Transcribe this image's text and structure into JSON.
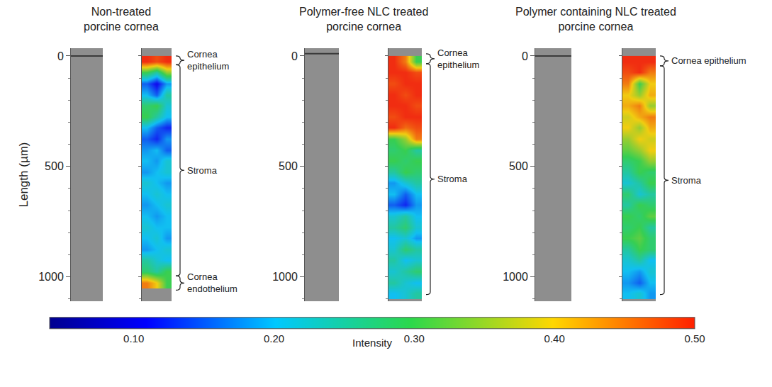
{
  "chart_data": {
    "type": "heatmap",
    "ylabel": "Length (µm)",
    "ylim": [
      1110,
      -35
    ],
    "yticks": [
      0,
      500,
      1000
    ],
    "yminor": [
      100,
      200,
      300,
      400,
      600,
      700,
      800,
      900,
      1100
    ],
    "y": [
      25,
      75,
      125,
      175,
      225,
      275,
      325,
      375,
      425,
      475,
      525,
      575,
      625,
      675,
      725,
      775,
      825,
      875,
      925,
      975,
      1025,
      1075
    ],
    "colorbar": {
      "title": "Intensity",
      "range": [
        0.04,
        0.5
      ],
      "ticks": [
        {
          "value": 0.1,
          "label": "0.10"
        },
        {
          "value": 0.2,
          "label": "0.20"
        },
        {
          "value": 0.3,
          "label": "0.30"
        },
        {
          "value": 0.4,
          "label": "0.40"
        },
        {
          "value": 0.5,
          "label": "0.50"
        }
      ]
    },
    "panels": [
      {
        "title": "Non-treated porcine cornea",
        "regions": [
          {
            "label": "Cornea epithelium",
            "start": 0,
            "end": 40
          },
          {
            "label": "Stroma",
            "start": 40,
            "end": 995
          },
          {
            "label": "Cornea endothelium",
            "start": 995,
            "end": 1060
          }
        ],
        "z": [
          [
            0.5,
            0.48,
            0.5
          ],
          [
            0.3,
            0.25,
            0.35
          ],
          [
            0.15,
            0.1,
            0.18
          ],
          [
            0.2,
            0.15,
            0.25
          ],
          [
            0.28,
            0.3,
            0.22
          ],
          [
            0.3,
            0.25,
            0.2
          ],
          [
            0.2,
            0.15,
            0.12
          ],
          [
            0.15,
            0.12,
            0.18
          ],
          [
            0.18,
            0.2,
            0.15
          ],
          [
            0.2,
            0.18,
            0.22
          ],
          [
            0.18,
            0.2,
            0.22
          ],
          [
            0.22,
            0.2,
            0.18
          ],
          [
            0.2,
            0.22,
            0.2
          ],
          [
            0.18,
            0.2,
            0.22
          ],
          [
            0.2,
            0.18,
            0.2
          ],
          [
            0.22,
            0.2,
            0.2
          ],
          [
            0.2,
            0.22,
            0.18
          ],
          [
            0.18,
            0.2,
            0.22
          ],
          [
            0.25,
            0.22,
            0.2
          ],
          [
            0.28,
            0.25,
            0.3
          ],
          [
            0.45,
            0.4,
            0.3
          ],
          [
            null,
            null,
            null
          ]
        ]
      },
      {
        "title": "Polymer-free NLC treated porcine cornea",
        "regions": [
          {
            "label": "Cornea epithelium",
            "start": -10,
            "end": 35
          },
          {
            "label": "Stroma",
            "start": 35,
            "end": 1080
          }
        ],
        "z": [
          [
            0.5,
            0.45,
            0.3
          ],
          [
            0.5,
            0.5,
            0.48
          ],
          [
            0.48,
            0.5,
            0.5
          ],
          [
            0.5,
            0.48,
            0.5
          ],
          [
            0.5,
            0.5,
            0.48
          ],
          [
            0.48,
            0.5,
            0.5
          ],
          [
            0.5,
            0.46,
            0.48
          ],
          [
            0.3,
            0.35,
            0.45
          ],
          [
            0.28,
            0.3,
            0.25
          ],
          [
            0.3,
            0.28,
            0.3
          ],
          [
            0.25,
            0.3,
            0.28
          ],
          [
            0.18,
            0.22,
            0.25
          ],
          [
            0.2,
            0.15,
            0.2
          ],
          [
            0.15,
            0.12,
            0.18
          ],
          [
            0.22,
            0.25,
            0.2
          ],
          [
            0.25,
            0.28,
            0.22
          ],
          [
            0.2,
            0.22,
            0.18
          ],
          [
            0.22,
            0.28,
            0.25
          ],
          [
            0.25,
            0.2,
            0.22
          ],
          [
            0.22,
            0.25,
            0.28
          ],
          [
            0.25,
            0.22,
            0.2
          ],
          [
            0.2,
            0.22,
            0.25
          ]
        ]
      },
      {
        "title": "Polymer containing NLC treated porcine cornea",
        "regions": [
          {
            "label": "Cornea epithelium",
            "start": 0,
            "end": 45
          },
          {
            "label": "Stroma",
            "start": 45,
            "end": 1080
          }
        ],
        "z": [
          [
            0.5,
            0.5,
            0.5
          ],
          [
            0.48,
            0.5,
            0.45
          ],
          [
            0.45,
            0.3,
            0.4
          ],
          [
            0.4,
            0.35,
            0.42
          ],
          [
            0.42,
            0.45,
            0.35
          ],
          [
            0.38,
            0.42,
            0.45
          ],
          [
            0.4,
            0.35,
            0.42
          ],
          [
            0.35,
            0.4,
            0.38
          ],
          [
            0.32,
            0.35,
            0.4
          ],
          [
            0.28,
            0.3,
            0.35
          ],
          [
            0.25,
            0.3,
            0.28
          ],
          [
            0.22,
            0.25,
            0.3
          ],
          [
            0.28,
            0.22,
            0.25
          ],
          [
            0.25,
            0.3,
            0.28
          ],
          [
            0.3,
            0.28,
            0.32
          ],
          [
            0.28,
            0.3,
            0.25
          ],
          [
            0.3,
            0.32,
            0.28
          ],
          [
            0.25,
            0.3,
            0.28
          ],
          [
            0.22,
            0.25,
            0.2
          ],
          [
            0.2,
            0.18,
            0.22
          ],
          [
            0.18,
            0.15,
            0.2
          ],
          [
            0.2,
            0.22,
            0.18
          ]
        ]
      }
    ]
  }
}
